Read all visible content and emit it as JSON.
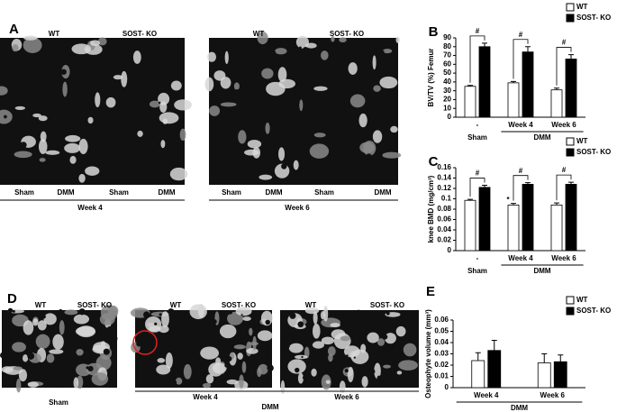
{
  "panels": {
    "A": {
      "label": "A",
      "left": {
        "headers": [
          "WT",
          "SOST- KO"
        ],
        "conditions": [
          "Sham",
          "DMM",
          "Sham",
          "DMM"
        ],
        "week": "Week 4"
      },
      "right": {
        "headers": [
          "WT",
          "SOST- KO"
        ],
        "conditions": [
          "Sham",
          "DMM",
          "Sham",
          "DMM"
        ],
        "week": "Week 6"
      }
    },
    "D": {
      "label": "D",
      "headers": [
        [
          "WT",
          "SOST- KO"
        ],
        [
          "WT",
          "SOST- KO"
        ],
        [
          "WT",
          "SOST- KO"
        ]
      ],
      "sham": "Sham",
      "weeks": [
        "Week 4",
        "Week 6"
      ],
      "group": "DMM"
    }
  },
  "chart_data": [
    {
      "type": "bar",
      "panel_label": "B",
      "ylabel": "BV/TV (%) Femur",
      "categories": [
        "-",
        "Week 4",
        "Week 6"
      ],
      "groups": [
        {
          "label": "Sham",
          "categories": [
            0
          ]
        },
        {
          "label": "DMM",
          "categories": [
            1,
            2
          ]
        }
      ],
      "series": [
        {
          "name": "WT",
          "color": "#ffffff",
          "values": [
            35,
            39,
            31
          ],
          "errors": [
            1,
            1.5,
            2
          ]
        },
        {
          "name": "SOST- KO",
          "color": "#000000",
          "values": [
            80,
            74,
            66
          ],
          "errors": [
            4,
            6,
            5
          ]
        }
      ],
      "annotations": [
        {
          "text": "#",
          "category": 0
        },
        {
          "text": "#",
          "category": 1
        },
        {
          "text": "#",
          "category": 2
        }
      ],
      "ylim": [
        0,
        90
      ],
      "yticks": [
        0,
        10,
        20,
        30,
        40,
        50,
        60,
        70,
        80,
        90
      ]
    },
    {
      "type": "bar",
      "panel_label": "C",
      "ylabel": "knee BMD (mg/cm³)",
      "categories": [
        "-",
        "Week 4",
        "Week 6"
      ],
      "groups": [
        {
          "label": "Sham",
          "categories": [
            0
          ]
        },
        {
          "label": "DMM",
          "categories": [
            1,
            2
          ]
        }
      ],
      "series": [
        {
          "name": "WT",
          "color": "#ffffff",
          "values": [
            0.097,
            0.088,
            0.088
          ],
          "errors": [
            0.002,
            0.003,
            0.004
          ]
        },
        {
          "name": "SOST- KO",
          "color": "#000000",
          "values": [
            0.122,
            0.128,
            0.128
          ],
          "errors": [
            0.004,
            0.003,
            0.004
          ]
        }
      ],
      "annotations": [
        {
          "text": "#",
          "category": 0
        },
        {
          "text": "#",
          "category": 1
        },
        {
          "text": "#",
          "category": 2
        },
        {
          "text": "*",
          "category": 1,
          "series": 0
        }
      ],
      "ylim": [
        0,
        0.16
      ],
      "yticks": [
        0,
        0.02,
        0.04,
        0.06,
        0.08,
        0.1,
        0.12,
        0.14,
        0.16
      ]
    },
    {
      "type": "bar",
      "panel_label": "E",
      "ylabel": "Osteophyte volume (mm³)",
      "categories": [
        "Week 4",
        "Week 6"
      ],
      "groups": [
        {
          "label": "DMM",
          "categories": [
            0,
            1
          ]
        }
      ],
      "series": [
        {
          "name": "WT",
          "color": "#ffffff",
          "values": [
            0.024,
            0.022
          ],
          "errors": [
            0.007,
            0.008
          ]
        },
        {
          "name": "SOST- KO",
          "color": "#000000",
          "values": [
            0.033,
            0.023
          ],
          "errors": [
            0.009,
            0.006
          ]
        }
      ],
      "annotations": [],
      "ylim": [
        0,
        0.06
      ],
      "yticks": [
        0,
        0.01,
        0.02,
        0.03,
        0.04,
        0.05,
        0.06
      ]
    }
  ]
}
